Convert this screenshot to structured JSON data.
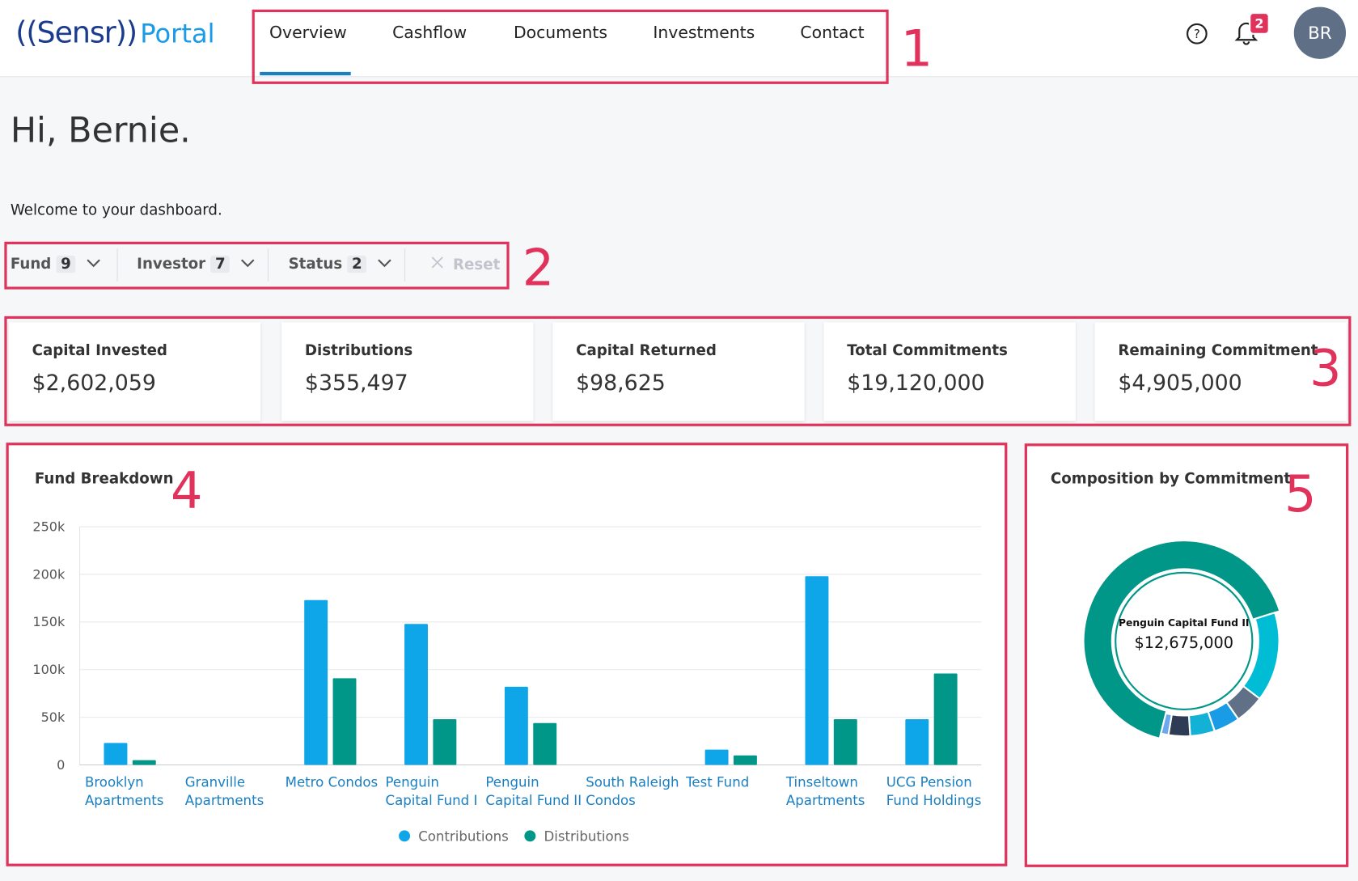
{
  "header": {
    "logo": "((Sensr))",
    "portal": "Portal",
    "nav": [
      "Overview",
      "Cashflow",
      "Documents",
      "Investments",
      "Contact"
    ],
    "active": 0,
    "notifications": 2,
    "avatar": "BR"
  },
  "greeting": "Hi, Bernie.",
  "welcome": "Welcome to your dashboard.",
  "filters": [
    {
      "label": "Fund",
      "count": 9
    },
    {
      "label": "Investor",
      "count": 7
    },
    {
      "label": "Status",
      "count": 2
    }
  ],
  "reset": "Reset",
  "kpis": [
    {
      "label": "Capital Invested",
      "value": "$2,602,059"
    },
    {
      "label": "Distributions",
      "value": "$355,497"
    },
    {
      "label": "Capital Returned",
      "value": "$98,625"
    },
    {
      "label": "Total Commitments",
      "value": "$19,120,000"
    },
    {
      "label": "Remaining Commitment",
      "value": "$4,905,000"
    }
  ],
  "fund_breakdown": {
    "type": "bar",
    "title": "Fund Breakdown",
    "categories": [
      "Brooklyn Apartments",
      "Granville Apartments",
      "Metro Condos",
      "Penguin Capital Fund I",
      "Penguin Capital Fund II",
      "South Raleigh Condos",
      "Test Fund",
      "Tinseltown Apartments",
      "UCG Pension Fund Holdings"
    ],
    "series": [
      {
        "name": "Contributions",
        "color": "#0ea5e9",
        "values": [
          23000,
          0,
          173000,
          148000,
          82000,
          0,
          16000,
          198000,
          48000
        ]
      },
      {
        "name": "Distributions",
        "color": "#009688",
        "values": [
          5000,
          0,
          91000,
          48000,
          44000,
          0,
          10000,
          48000,
          96000
        ]
      }
    ],
    "ylim": [
      0,
      250000
    ],
    "yticks": [
      0,
      {
        "value": 50000,
        "label": "50k"
      },
      {
        "value": 100000,
        "label": "100k"
      },
      {
        "value": 150000,
        "label": "150k"
      },
      {
        "value": 200000,
        "label": "200k"
      },
      {
        "value": 250000,
        "label": "250k"
      }
    ],
    "grid": true
  },
  "composition": {
    "type": "donut",
    "title": "Composition by Commitment",
    "categories": [
      "Penguin Capital Fund II",
      null,
      null,
      null,
      null,
      null,
      null
    ],
    "values": [
      12675000,
      2900000,
      950000,
      850000,
      800000,
      700000,
      245000
    ],
    "value_labels": [
      "$12,675,000",
      null,
      null,
      null,
      null,
      null,
      null
    ],
    "colors": [
      "#009688",
      "#00bcd4",
      "#607086",
      "#1a9be6",
      "#14b1d6",
      "#2d3b55",
      "#6aa8f0"
    ]
  },
  "annotations": [
    "1",
    "2",
    "3",
    "4",
    "5"
  ]
}
